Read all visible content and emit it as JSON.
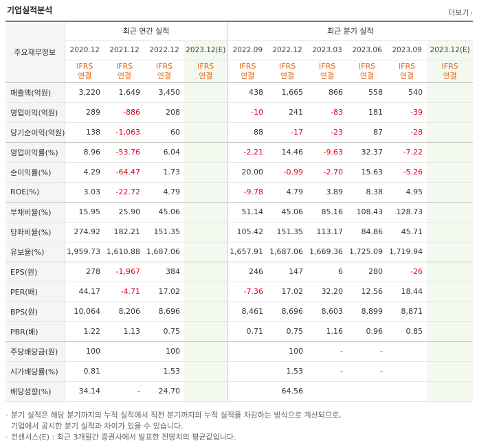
{
  "page": {
    "title": "기업실적분석",
    "more_label": "더보기"
  },
  "table": {
    "label_header": "주요재무정보",
    "annual_header": "최근 연간 실적",
    "quarter_header": "최근 분기 실적",
    "annual_periods": [
      "2020.12",
      "2021.12",
      "2022.12",
      "2023.12(E)"
    ],
    "quarter_periods": [
      "2022.09",
      "2022.12",
      "2023.03",
      "2023.06",
      "2023.09",
      "2023.12(E)"
    ],
    "ifrs_top": "IFRS",
    "ifrs_bottom": "연결",
    "rows": [
      {
        "label": "매출액(억원)",
        "annual": [
          "3,220",
          "1,649",
          "3,450",
          ""
        ],
        "quarter": [
          "438",
          "1,665",
          "866",
          "558",
          "540",
          ""
        ]
      },
      {
        "label": "영업이익(억원)",
        "annual": [
          "289",
          "-886",
          "208",
          ""
        ],
        "quarter": [
          "-10",
          "241",
          "-83",
          "181",
          "-39",
          ""
        ]
      },
      {
        "label": "당기순이익(억원)",
        "annual": [
          "138",
          "-1,063",
          "60",
          ""
        ],
        "quarter": [
          "88",
          "-17",
          "-23",
          "87",
          "-28",
          ""
        ]
      },
      {
        "label": "영업이익률(%)",
        "annual": [
          "8.96",
          "-53.76",
          "6.04",
          ""
        ],
        "quarter": [
          "-2.21",
          "14.46",
          "-9.63",
          "32.37",
          "-7.22",
          ""
        ]
      },
      {
        "label": "순이익률(%)",
        "annual": [
          "4.29",
          "-64.47",
          "1.73",
          ""
        ],
        "quarter": [
          "20.00",
          "-0.99",
          "-2.70",
          "15.63",
          "-5.26",
          ""
        ]
      },
      {
        "label": "ROE(%)",
        "annual": [
          "3.03",
          "-22.72",
          "4.79",
          ""
        ],
        "quarter": [
          "-9.78",
          "4.79",
          "3.89",
          "8.38",
          "4.95",
          ""
        ]
      },
      {
        "label": "부채비율(%)",
        "annual": [
          "15.95",
          "25.90",
          "45.06",
          ""
        ],
        "quarter": [
          "51.14",
          "45.06",
          "85.16",
          "108.43",
          "128.73",
          ""
        ]
      },
      {
        "label": "당좌비율(%)",
        "annual": [
          "274.92",
          "182.21",
          "151.35",
          ""
        ],
        "quarter": [
          "105.42",
          "151.35",
          "113.17",
          "84.86",
          "45.71",
          ""
        ]
      },
      {
        "label": "유보율(%)",
        "annual": [
          "1,959.73",
          "1,610.88",
          "1,687.06",
          ""
        ],
        "quarter": [
          "1,657.91",
          "1,687.06",
          "1,669.36",
          "1,725.09",
          "1,719.94",
          ""
        ]
      },
      {
        "label": "EPS(원)",
        "annual": [
          "278",
          "-1,967",
          "384",
          ""
        ],
        "quarter": [
          "246",
          "147",
          "6",
          "280",
          "-26",
          ""
        ]
      },
      {
        "label": "PER(배)",
        "annual": [
          "44.17",
          "-4.71",
          "17.02",
          ""
        ],
        "quarter": [
          "-7.36",
          "17.02",
          "32.20",
          "12.56",
          "18.44",
          ""
        ]
      },
      {
        "label": "BPS(원)",
        "annual": [
          "10,064",
          "8,206",
          "8,696",
          ""
        ],
        "quarter": [
          "8,461",
          "8,696",
          "8,603",
          "8,899",
          "8,871",
          ""
        ]
      },
      {
        "label": "PBR(배)",
        "annual": [
          "1.22",
          "1.13",
          "0.75",
          ""
        ],
        "quarter": [
          "0.71",
          "0.75",
          "1.16",
          "0.96",
          "0.85",
          ""
        ]
      },
      {
        "label": "주당배당금(원)",
        "annual": [
          "100",
          "",
          "100",
          ""
        ],
        "quarter": [
          "",
          "100",
          "-",
          "-",
          "",
          ""
        ]
      },
      {
        "label": "시가배당률(%)",
        "annual": [
          "0.81",
          "",
          "1.53",
          ""
        ],
        "quarter": [
          "",
          "1.53",
          "-",
          "-",
          "",
          ""
        ]
      },
      {
        "label": "배당성향(%)",
        "annual": [
          "34.14",
          "-",
          "24.70",
          ""
        ],
        "quarter": [
          "",
          "64.56",
          "",
          "",
          "",
          ""
        ]
      }
    ],
    "group_end_rows": [
      2,
      5,
      8,
      12
    ]
  },
  "notes": [
    "분기 실적은 해당 분기까지의 누적 실적에서 직전 분기까지의 누적 실적을 차감하는 방식으로 계산되므로,",
    "기업에서 공시한 분기 실적과 차이가 있을 수 있습니다.",
    "컨센서스(E) : 최근 3개월간 증권사에서 발표한 전망치의 평균값입니다."
  ],
  "colors": {
    "negative": "#e5001e",
    "ifrs": "#e46b1e",
    "estimate_bg": "#f3f9ee",
    "label_bg": "#f5f5f5"
  }
}
